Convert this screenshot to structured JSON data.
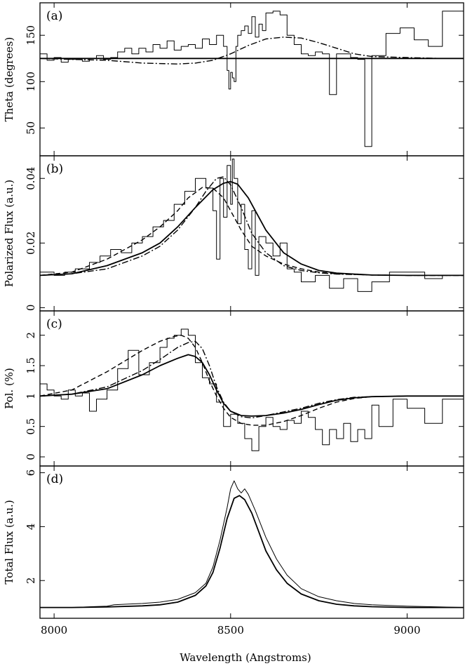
{
  "figure": {
    "xlabel": "Wavelength (Angstroms)"
  },
  "chart_data": [
    {
      "type": "line",
      "panel_label": "(a)",
      "xlabel": "Wavelength (Angstroms)",
      "ylabel": "Theta (degrees)",
      "xlim": [
        7960,
        9160
      ],
      "ylim": [
        20,
        185
      ],
      "x_ticks": [],
      "y_ticks": [
        50,
        100,
        150
      ],
      "grid": false,
      "series": [
        {
          "style": "histogram-thin",
          "x": [
            7960,
            7980,
            8000,
            8020,
            8040,
            8060,
            8080,
            8100,
            8120,
            8140,
            8160,
            8180,
            8200,
            8220,
            8240,
            8260,
            8280,
            8300,
            8320,
            8340,
            8360,
            8380,
            8400,
            8420,
            8440,
            8460,
            8480,
            8490,
            8495,
            8500,
            8505,
            8510,
            8515,
            8520,
            8530,
            8540,
            8550,
            8560,
            8570,
            8580,
            8590,
            8600,
            8620,
            8640,
            8660,
            8680,
            8700,
            8720,
            8740,
            8760,
            8780,
            8800,
            8820,
            8840,
            8860,
            8880,
            8900,
            8940,
            8980,
            9020,
            9060,
            9100,
            9160
          ],
          "y": [
            130,
            123,
            126,
            121,
            124,
            124,
            122,
            125,
            128,
            124,
            126,
            132,
            136,
            130,
            136,
            132,
            140,
            136,
            144,
            134,
            138,
            140,
            136,
            146,
            140,
            150,
            138,
            112,
            92,
            110,
            104,
            100,
            138,
            150,
            155,
            160,
            152,
            170,
            148,
            162,
            155,
            174,
            176,
            172,
            150,
            140,
            130,
            128,
            132,
            130,
            86,
            130,
            130,
            126,
            124,
            30,
            128,
            152,
            158,
            145,
            138,
            176,
            176
          ]
        },
        {
          "style": "solid",
          "x": [
            7960,
            9160
          ],
          "y": [
            125,
            125
          ]
        },
        {
          "style": "dashdot",
          "x": [
            7960,
            8050,
            8150,
            8250,
            8350,
            8400,
            8450,
            8500,
            8550,
            8600,
            8650,
            8700,
            8750,
            8800,
            8850,
            8900,
            9000,
            9100,
            9160
          ],
          "y": [
            125,
            124,
            123,
            120,
            119,
            120,
            123,
            130,
            139,
            146,
            148,
            147,
            142,
            136,
            130,
            127,
            126,
            125,
            125
          ]
        }
      ]
    },
    {
      "type": "line",
      "panel_label": "(b)",
      "xlabel": "Wavelength (Angstroms)",
      "ylabel": "Polarized Flux (a.u.)",
      "xlim": [
        7960,
        9160
      ],
      "ylim": [
        -0.001,
        0.047
      ],
      "x_ticks": [],
      "y_ticks": [
        0,
        0.02,
        0.04
      ],
      "grid": false,
      "series": [
        {
          "style": "histogram-thin",
          "x": [
            7960,
            8000,
            8030,
            8060,
            8100,
            8130,
            8160,
            8190,
            8220,
            8250,
            8280,
            8310,
            8340,
            8370,
            8400,
            8430,
            8450,
            8460,
            8470,
            8480,
            8490,
            8500,
            8505,
            8510,
            8520,
            8530,
            8540,
            8550,
            8560,
            8570,
            8580,
            8600,
            8620,
            8640,
            8660,
            8680,
            8700,
            8740,
            8780,
            8820,
            8860,
            8900,
            8950,
            9000,
            9050,
            9100,
            9160
          ],
          "y": [
            0.011,
            0.01,
            0.011,
            0.012,
            0.014,
            0.016,
            0.018,
            0.017,
            0.02,
            0.022,
            0.025,
            0.027,
            0.032,
            0.036,
            0.04,
            0.037,
            0.03,
            0.015,
            0.04,
            0.028,
            0.044,
            0.032,
            0.046,
            0.04,
            0.026,
            0.032,
            0.018,
            0.012,
            0.03,
            0.01,
            0.022,
            0.02,
            0.016,
            0.02,
            0.012,
            0.011,
            0.008,
            0.01,
            0.006,
            0.009,
            0.005,
            0.008,
            0.011,
            0.011,
            0.009,
            0.01,
            0.01
          ]
        },
        {
          "style": "solid",
          "x": [
            7960,
            8050,
            8150,
            8250,
            8300,
            8350,
            8400,
            8450,
            8480,
            8500,
            8520,
            8550,
            8600,
            8650,
            8700,
            8750,
            8800,
            8900,
            9000,
            9160
          ],
          "y": [
            0.01,
            0.0105,
            0.013,
            0.017,
            0.02,
            0.025,
            0.031,
            0.0365,
            0.0385,
            0.039,
            0.0382,
            0.034,
            0.024,
            0.017,
            0.0135,
            0.0115,
            0.0107,
            0.0101,
            0.01,
            0.01
          ]
        },
        {
          "style": "dashed",
          "x": [
            7960,
            8050,
            8150,
            8250,
            8300,
            8350,
            8380,
            8420,
            8450,
            8480,
            8500,
            8530,
            8560,
            8600,
            8650,
            8700,
            8750,
            8800,
            8900,
            9000,
            9160
          ],
          "y": [
            0.01,
            0.011,
            0.015,
            0.021,
            0.025,
            0.03,
            0.034,
            0.0372,
            0.037,
            0.034,
            0.03,
            0.024,
            0.019,
            0.016,
            0.0135,
            0.012,
            0.011,
            0.0105,
            0.0101,
            0.01,
            0.01
          ]
        },
        {
          "style": "dashdot",
          "x": [
            7960,
            8050,
            8150,
            8250,
            8300,
            8350,
            8400,
            8430,
            8460,
            8480,
            8500,
            8530,
            8560,
            8600,
            8650,
            8700,
            8750,
            8800,
            8900,
            9000,
            9160
          ],
          "y": [
            0.01,
            0.0105,
            0.012,
            0.016,
            0.019,
            0.024,
            0.031,
            0.036,
            0.04,
            0.0405,
            0.038,
            0.031,
            0.023,
            0.017,
            0.013,
            0.0115,
            0.0108,
            0.0104,
            0.0101,
            0.01,
            0.01
          ]
        }
      ]
    },
    {
      "type": "line",
      "panel_label": "(c)",
      "xlabel": "Wavelength (Angstroms)",
      "ylabel": "Pol. (%)",
      "xlim": [
        7960,
        9160
      ],
      "ylim": [
        -0.15,
        2.4
      ],
      "x_ticks": [],
      "y_ticks": [
        0,
        0.5,
        1,
        1.5,
        2
      ],
      "grid": false,
      "series": [
        {
          "style": "histogram-thin",
          "x": [
            7960,
            7980,
            8000,
            8020,
            8040,
            8060,
            8080,
            8100,
            8120,
            8150,
            8180,
            8210,
            8240,
            8270,
            8300,
            8320,
            8340,
            8360,
            8380,
            8400,
            8420,
            8440,
            8460,
            8480,
            8500,
            8520,
            8540,
            8560,
            8580,
            8600,
            8620,
            8640,
            8660,
            8680,
            8700,
            8720,
            8740,
            8760,
            8780,
            8800,
            8820,
            8840,
            8860,
            8880,
            8900,
            8920,
            8960,
            9000,
            9050,
            9100,
            9160
          ],
          "y": [
            1.2,
            1.1,
            1.0,
            0.95,
            1.1,
            1.0,
            1.05,
            0.75,
            0.95,
            1.1,
            1.45,
            1.75,
            1.35,
            1.55,
            1.8,
            1.95,
            2.0,
            2.1,
            2.0,
            1.55,
            1.3,
            1.2,
            0.9,
            0.5,
            0.7,
            0.55,
            0.3,
            0.1,
            0.5,
            0.65,
            0.5,
            0.45,
            0.6,
            0.55,
            0.75,
            0.65,
            0.45,
            0.2,
            0.45,
            0.3,
            0.55,
            0.25,
            0.45,
            0.3,
            0.85,
            0.5,
            0.95,
            0.8,
            0.55,
            0.95,
            0.95
          ]
        },
        {
          "style": "solid",
          "x": [
            7960,
            8050,
            8150,
            8250,
            8300,
            8350,
            8380,
            8400,
            8420,
            8440,
            8460,
            8480,
            8500,
            8530,
            8560,
            8600,
            8650,
            8700,
            8750,
            8800,
            8850,
            8900,
            9000,
            9160
          ],
          "y": [
            1.0,
            1.03,
            1.12,
            1.35,
            1.5,
            1.62,
            1.68,
            1.65,
            1.55,
            1.35,
            1.1,
            0.88,
            0.75,
            0.68,
            0.67,
            0.68,
            0.72,
            0.78,
            0.86,
            0.93,
            0.97,
            0.99,
            1.0,
            1.0
          ]
        },
        {
          "style": "dashed",
          "x": [
            7960,
            8050,
            8150,
            8250,
            8300,
            8340,
            8360,
            8380,
            8400,
            8420,
            8440,
            8460,
            8480,
            8500,
            8530,
            8560,
            8600,
            8650,
            8700,
            8750,
            8800,
            8850,
            8900,
            9000,
            9160
          ],
          "y": [
            1.0,
            1.1,
            1.4,
            1.75,
            1.9,
            1.98,
            2.0,
            1.95,
            1.8,
            1.55,
            1.25,
            1.0,
            0.8,
            0.65,
            0.55,
            0.52,
            0.52,
            0.58,
            0.68,
            0.8,
            0.9,
            0.96,
            0.99,
            1.0,
            1.0
          ]
        },
        {
          "style": "dashdot",
          "x": [
            7960,
            8050,
            8150,
            8250,
            8300,
            8350,
            8380,
            8400,
            8420,
            8440,
            8460,
            8480,
            8500,
            8530,
            8560,
            8600,
            8650,
            8700,
            8750,
            8800,
            8850,
            8900,
            9000,
            9160
          ],
          "y": [
            1.0,
            1.03,
            1.15,
            1.42,
            1.6,
            1.8,
            1.88,
            1.9,
            1.78,
            1.5,
            1.15,
            0.9,
            0.75,
            0.66,
            0.64,
            0.68,
            0.74,
            0.8,
            0.88,
            0.94,
            0.98,
            0.99,
            1.0,
            1.0
          ]
        }
      ]
    },
    {
      "type": "line",
      "panel_label": "(d)",
      "xlabel": "Wavelength (Angstroms)",
      "ylabel": "Total Flux (a.u.)",
      "xlim": [
        7960,
        9160
      ],
      "ylim": [
        0.6,
        6.25
      ],
      "x_ticks": [
        8000,
        8500,
        9000
      ],
      "y_ticks": [
        2,
        4,
        6
      ],
      "grid": false,
      "series": [
        {
          "style": "thin",
          "x": [
            7960,
            8050,
            8150,
            8170,
            8200,
            8250,
            8300,
            8350,
            8400,
            8430,
            8450,
            8470,
            8490,
            8500,
            8510,
            8520,
            8530,
            8540,
            8550,
            8570,
            8600,
            8630,
            8660,
            8700,
            8750,
            8800,
            8850,
            8900,
            9000,
            9100,
            9160
          ],
          "y": [
            1.0,
            1.0,
            1.05,
            1.1,
            1.12,
            1.15,
            1.2,
            1.3,
            1.55,
            1.9,
            2.5,
            3.5,
            4.7,
            5.4,
            5.7,
            5.4,
            5.25,
            5.4,
            5.2,
            4.6,
            3.6,
            2.8,
            2.2,
            1.7,
            1.4,
            1.25,
            1.15,
            1.1,
            1.05,
            1.02,
            1.0
          ]
        },
        {
          "style": "solid",
          "x": [
            7960,
            8050,
            8150,
            8250,
            8300,
            8350,
            8400,
            8430,
            8450,
            8470,
            8490,
            8510,
            8525,
            8540,
            8560,
            8580,
            8600,
            8630,
            8660,
            8700,
            8750,
            8800,
            8850,
            8900,
            9000,
            9160
          ],
          "y": [
            1.0,
            1.0,
            1.02,
            1.06,
            1.1,
            1.2,
            1.45,
            1.8,
            2.3,
            3.2,
            4.3,
            5.05,
            5.15,
            5.0,
            4.5,
            3.8,
            3.1,
            2.4,
            1.9,
            1.5,
            1.25,
            1.12,
            1.06,
            1.03,
            1.0,
            1.0
          ]
        }
      ]
    }
  ]
}
